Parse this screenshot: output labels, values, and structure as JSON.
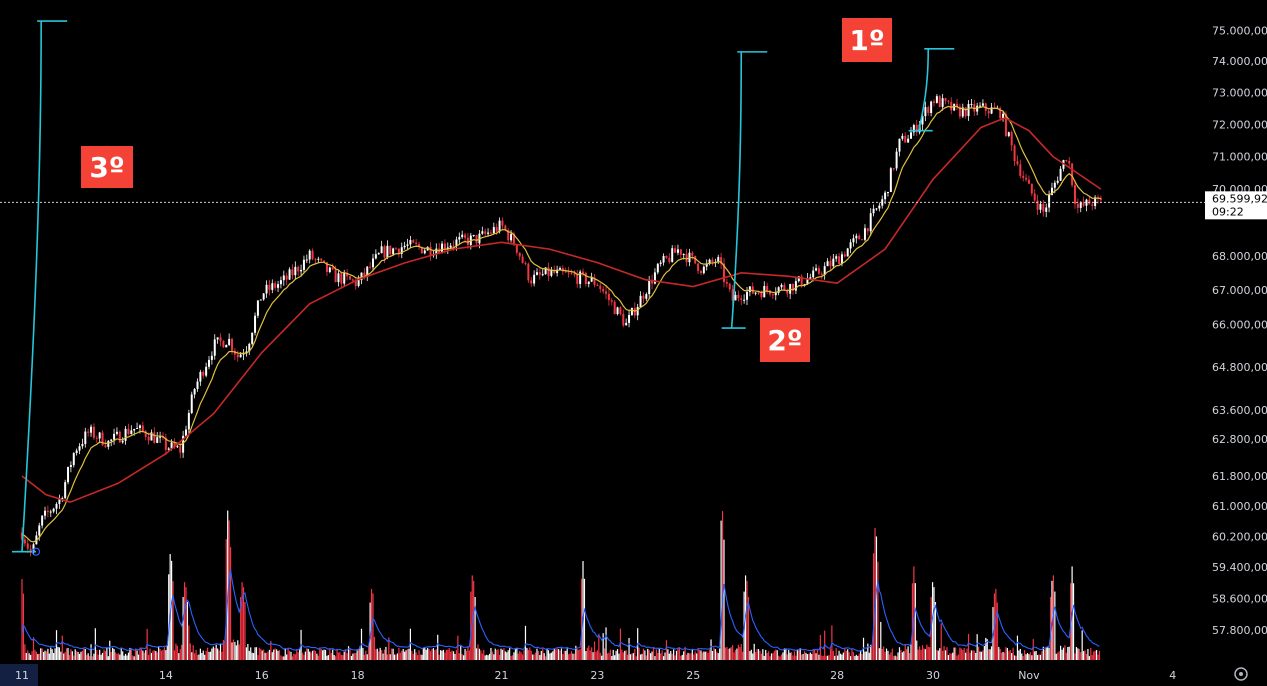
{
  "chart_data": {
    "type": "candlestick",
    "y_scale": "log",
    "ylim": [
      57500,
      75500
    ],
    "y_ticks": [
      75000,
      74000,
      73000,
      72000,
      71000,
      70000,
      68000,
      67000,
      66000,
      64800,
      63600,
      62800,
      61800,
      61000,
      60200,
      59400,
      58600,
      57800
    ],
    "y_tick_labels": [
      "75.000,00",
      "74.000,00",
      "73.000,00",
      "72.000,00",
      "71.000,00",
      "70.000,00",
      "68.000,00",
      "67.000,00",
      "66.000,00",
      "64.800,00",
      "63.600,00",
      "62.800,00",
      "61.800,00",
      "61.000,00",
      "60.200,00",
      "59.400,00",
      "58.600,00",
      "57.800,00"
    ],
    "x_ticks": [
      {
        "label": "11",
        "day": 0
      },
      {
        "label": "14",
        "day": 3
      },
      {
        "label": "16",
        "day": 5
      },
      {
        "label": "18",
        "day": 7
      },
      {
        "label": "21",
        "day": 10
      },
      {
        "label": "23",
        "day": 12
      },
      {
        "label": "25",
        "day": 14
      },
      {
        "label": "28",
        "day": 17
      },
      {
        "label": "30",
        "day": 19
      },
      {
        "label": "Nov",
        "day": 21
      },
      {
        "label": "4",
        "day": 24
      }
    ],
    "x_range_days": [
      0,
      26.2
    ],
    "current_price": 69599.92,
    "current_price_label": "69.599,92",
    "countdown": "09:22",
    "colors": {
      "up": "#ffffff",
      "down": "#f23645",
      "ma_slow": "#c62828",
      "ma_fast": "#e0c040",
      "annotation": "#26c6da",
      "tag_bg": "#f44336",
      "volume_ma": "#2962ff"
    },
    "price_path": [
      {
        "day": 0.0,
        "price": 60300
      },
      {
        "day": 0.2,
        "price": 59700
      },
      {
        "day": 0.4,
        "price": 60600
      },
      {
        "day": 0.8,
        "price": 61200
      },
      {
        "day": 1.1,
        "price": 62500
      },
      {
        "day": 1.4,
        "price": 63000
      },
      {
        "day": 1.8,
        "price": 62700
      },
      {
        "day": 2.3,
        "price": 63100
      },
      {
        "day": 2.7,
        "price": 62900
      },
      {
        "day": 3.0,
        "price": 62600
      },
      {
        "day": 3.3,
        "price": 62500
      },
      {
        "day": 3.6,
        "price": 64200
      },
      {
        "day": 4.0,
        "price": 65400
      },
      {
        "day": 4.3,
        "price": 65600
      },
      {
        "day": 4.5,
        "price": 65100
      },
      {
        "day": 4.7,
        "price": 65400
      },
      {
        "day": 5.0,
        "price": 66900
      },
      {
        "day": 5.5,
        "price": 67300
      },
      {
        "day": 6.0,
        "price": 68000
      },
      {
        "day": 6.5,
        "price": 67400
      },
      {
        "day": 7.0,
        "price": 67200
      },
      {
        "day": 7.5,
        "price": 68100
      },
      {
        "day": 8.0,
        "price": 68300
      },
      {
        "day": 8.5,
        "price": 68200
      },
      {
        "day": 9.0,
        "price": 68400
      },
      {
        "day": 9.5,
        "price": 68500
      },
      {
        "day": 10.0,
        "price": 68900
      },
      {
        "day": 10.3,
        "price": 68300
      },
      {
        "day": 10.6,
        "price": 67300
      },
      {
        "day": 11.0,
        "price": 67500
      },
      {
        "day": 11.5,
        "price": 67400
      },
      {
        "day": 12.0,
        "price": 67200
      },
      {
        "day": 12.3,
        "price": 66600
      },
      {
        "day": 12.6,
        "price": 66000
      },
      {
        "day": 13.0,
        "price": 67000
      },
      {
        "day": 13.3,
        "price": 67700
      },
      {
        "day": 13.7,
        "price": 68200
      },
      {
        "day": 14.2,
        "price": 67600
      },
      {
        "day": 14.5,
        "price": 67900
      },
      {
        "day": 14.8,
        "price": 66700
      },
      {
        "day": 15.0,
        "price": 66900
      },
      {
        "day": 15.5,
        "price": 67000
      },
      {
        "day": 16.0,
        "price": 67100
      },
      {
        "day": 16.5,
        "price": 67400
      },
      {
        "day": 17.0,
        "price": 67900
      },
      {
        "day": 17.5,
        "price": 68600
      },
      {
        "day": 18.0,
        "price": 69800
      },
      {
        "day": 18.3,
        "price": 71400
      },
      {
        "day": 18.6,
        "price": 71800
      },
      {
        "day": 19.0,
        "price": 72800
      },
      {
        "day": 19.5,
        "price": 72400
      },
      {
        "day": 20.0,
        "price": 72500
      },
      {
        "day": 20.4,
        "price": 72400
      },
      {
        "day": 20.7,
        "price": 71000
      },
      {
        "day": 21.0,
        "price": 70000
      },
      {
        "day": 21.3,
        "price": 69300
      },
      {
        "day": 21.6,
        "price": 70400
      },
      {
        "day": 21.8,
        "price": 71100
      },
      {
        "day": 22.0,
        "price": 69400
      },
      {
        "day": 22.3,
        "price": 69600
      },
      {
        "day": 22.5,
        "price": 69600
      }
    ],
    "ma_slow": [
      {
        "day": 0.0,
        "price": 61800
      },
      {
        "day": 0.5,
        "price": 61300
      },
      {
        "day": 1.0,
        "price": 61100
      },
      {
        "day": 2.0,
        "price": 61600
      },
      {
        "day": 3.0,
        "price": 62400
      },
      {
        "day": 4.0,
        "price": 63500
      },
      {
        "day": 5.0,
        "price": 65200
      },
      {
        "day": 6.0,
        "price": 66600
      },
      {
        "day": 7.0,
        "price": 67300
      },
      {
        "day": 8.0,
        "price": 67800
      },
      {
        "day": 9.0,
        "price": 68200
      },
      {
        "day": 10.0,
        "price": 68400
      },
      {
        "day": 11.0,
        "price": 68200
      },
      {
        "day": 12.0,
        "price": 67800
      },
      {
        "day": 13.0,
        "price": 67300
      },
      {
        "day": 14.0,
        "price": 67100
      },
      {
        "day": 15.0,
        "price": 67500
      },
      {
        "day": 16.0,
        "price": 67400
      },
      {
        "day": 17.0,
        "price": 67200
      },
      {
        "day": 18.0,
        "price": 68200
      },
      {
        "day": 19.0,
        "price": 70300
      },
      {
        "day": 20.0,
        "price": 71900
      },
      {
        "day": 20.5,
        "price": 72200
      },
      {
        "day": 21.0,
        "price": 71800
      },
      {
        "day": 21.5,
        "price": 71000
      },
      {
        "day": 22.0,
        "price": 70500
      },
      {
        "day": 22.5,
        "price": 70000
      }
    ],
    "annotations": [
      {
        "text": "3º",
        "kind": "rally-leg",
        "from_day": 0.0,
        "from_price": 59800,
        "to_day": 0.4,
        "to_price": 75300
      },
      {
        "text": "2º",
        "kind": "rally-leg",
        "from_day": 14.8,
        "from_price": 65900,
        "to_day": 15.0,
        "to_price": 74300
      },
      {
        "text": "1º",
        "kind": "rally-leg",
        "from_day": 18.7,
        "from_price": 71800,
        "to_day": 18.9,
        "to_price": 74400
      }
    ],
    "volume": {
      "spikes": [
        {
          "day": 0.0,
          "value": 0.45
        },
        {
          "day": 3.1,
          "value": 0.62
        },
        {
          "day": 3.4,
          "value": 0.46
        },
        {
          "day": 4.3,
          "value": 0.88
        },
        {
          "day": 4.6,
          "value": 0.46
        },
        {
          "day": 7.3,
          "value": 0.42
        },
        {
          "day": 9.4,
          "value": 0.5
        },
        {
          "day": 11.7,
          "value": 0.55
        },
        {
          "day": 14.6,
          "value": 0.88
        },
        {
          "day": 15.1,
          "value": 0.5
        },
        {
          "day": 17.8,
          "value": 0.78
        },
        {
          "day": 18.6,
          "value": 0.52
        },
        {
          "day": 19.0,
          "value": 0.46
        },
        {
          "day": 20.3,
          "value": 0.42
        },
        {
          "day": 21.5,
          "value": 0.5
        },
        {
          "day": 21.9,
          "value": 0.52
        }
      ]
    }
  }
}
